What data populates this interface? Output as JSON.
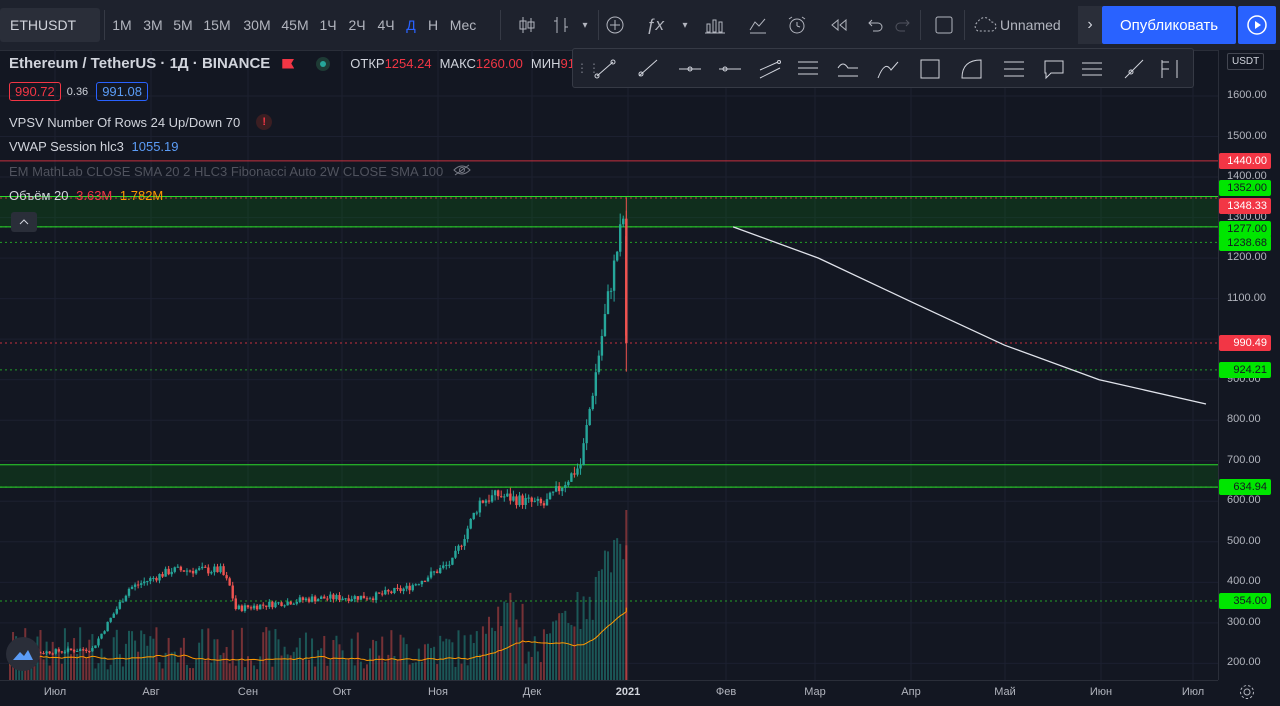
{
  "toolbar": {
    "symbol": "ETHUSDT",
    "intervals": [
      "1M",
      "3M",
      "5M",
      "15M",
      "30M",
      "45M",
      "1Ч",
      "2Ч",
      "4Ч",
      "Д",
      "Н",
      "Мес"
    ],
    "active_interval": "Д",
    "layout_name": "Unnamed",
    "publish_label": "Опубликовать"
  },
  "legend": {
    "symbol_title": "Ethereum / TetherUS · 1Д · BINANCE",
    "open_label": "ОТКР",
    "open_value": "1254.24",
    "high_label": "МАКС",
    "high_value": "1260.00",
    "low_label": "МИН",
    "low_value": "91",
    "bid": "990.72",
    "spread": "0.36",
    "ask": "991.08",
    "indicators": [
      {
        "name": "VPSV Number Of Rows 24 Up/Down 70",
        "value": ""
      },
      {
        "name": "VWAP Session hlc3",
        "value": "1055.19"
      },
      {
        "name": "EM MathLab CLOSE SMA 20 2 HLC3 Fibonacci Auto 2W CLOSE SMA 100",
        "value": ""
      },
      {
        "name": "Объём 20",
        "value": "3.63M",
        "value2": "1.782M"
      }
    ]
  },
  "price_axis": {
    "currency": "USDT",
    "ticks": [
      "1600.00",
      "1500.00",
      "1400.00",
      "1300.00",
      "1200.00",
      "1100.00",
      "900.00",
      "800.00",
      "700.00",
      "600.00",
      "500.00",
      "400.00",
      "300.00",
      "200.00"
    ],
    "labels": [
      {
        "text": "1440.00",
        "kind": "red"
      },
      {
        "text": "1352.00",
        "kind": "green"
      },
      {
        "text": "1348.33",
        "kind": "red"
      },
      {
        "text": "1277.00",
        "kind": "green"
      },
      {
        "text": "1238.68",
        "kind": "green"
      },
      {
        "text": "990.49",
        "kind": "red"
      },
      {
        "text": "924.21",
        "kind": "green"
      },
      {
        "text": "634.94",
        "kind": "green"
      },
      {
        "text": "354.00",
        "kind": "green"
      }
    ]
  },
  "time_axis": {
    "ticks": [
      "Июл",
      "Авг",
      "Сен",
      "Окт",
      "Ноя",
      "Дек",
      "2021",
      "Фев",
      "Мар",
      "Апр",
      "Май",
      "Июн",
      "Июл"
    ]
  },
  "chart_data": {
    "type": "candlestick",
    "title": "Ethereum / TetherUS · 1Д · BINANCE",
    "y_range": [
      150,
      1700
    ],
    "x_range": [
      "2020-06-23",
      "2021-07-20"
    ],
    "close_approx": [
      {
        "date": "2020-07-01",
        "close": 226
      },
      {
        "date": "2020-07-20",
        "close": 236
      },
      {
        "date": "2020-08-01",
        "close": 385
      },
      {
        "date": "2020-08-15",
        "close": 430
      },
      {
        "date": "2020-08-31",
        "close": 430
      },
      {
        "date": "2020-09-03",
        "close": 390
      },
      {
        "date": "2020-09-05",
        "close": 335
      },
      {
        "date": "2020-09-30",
        "close": 360
      },
      {
        "date": "2020-10-20",
        "close": 365
      },
      {
        "date": "2020-10-31",
        "close": 385
      },
      {
        "date": "2020-11-15",
        "close": 450
      },
      {
        "date": "2020-11-24",
        "close": 600
      },
      {
        "date": "2020-11-30",
        "close": 615
      },
      {
        "date": "2020-12-15",
        "close": 590
      },
      {
        "date": "2020-12-27",
        "close": 690
      },
      {
        "date": "2021-01-05",
        "close": 1100
      },
      {
        "date": "2021-01-10",
        "close": 1300
      },
      {
        "date": "2021-01-11",
        "close": 990
      }
    ],
    "volume_sma_note": "Объём 20",
    "horizontal_levels": [
      1440,
      1352,
      1348.33,
      1277,
      1238.68,
      990.49,
      924.21,
      634.94,
      354
    ],
    "zones": [
      {
        "from": 1277,
        "to": 1352,
        "color": "green"
      },
      {
        "from": 634.94,
        "to": 690,
        "color": "green"
      }
    ],
    "projection_curve": [
      {
        "date": "2021-02-15",
        "value": 1277
      },
      {
        "date": "2021-03-15",
        "value": 1200
      },
      {
        "date": "2021-04-15",
        "value": 1090
      },
      {
        "date": "2021-05-15",
        "value": 985
      },
      {
        "date": "2021-06-15",
        "value": 900
      },
      {
        "date": "2021-07-20",
        "value": 840
      }
    ]
  }
}
